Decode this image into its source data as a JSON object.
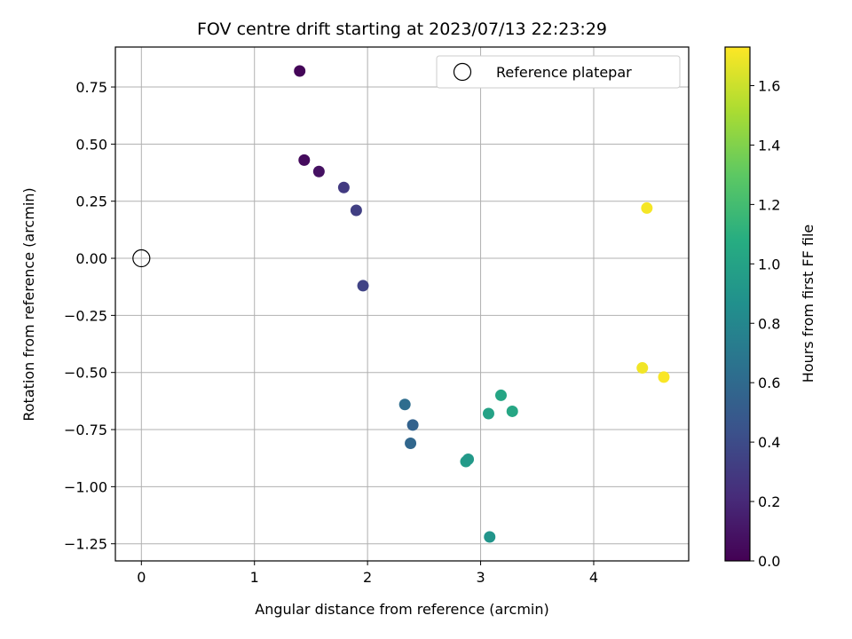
{
  "chart_data": {
    "type": "scatter",
    "title": "FOV centre drift starting at 2023/07/13 22:23:29",
    "xlabel": "Angular distance from reference (arcmin)",
    "ylabel": "Rotation from reference (arcmin)",
    "xlim": [
      -0.23,
      4.84
    ],
    "ylim": [
      -1.325,
      0.925
    ],
    "xticks": [
      0,
      1,
      2,
      3,
      4
    ],
    "xtick_labels": [
      "0",
      "1",
      "2",
      "3",
      "4"
    ],
    "yticks": [
      0.75,
      0.5,
      0.25,
      0.0,
      -0.25,
      -0.5,
      -0.75,
      -1.0,
      -1.25
    ],
    "ytick_labels": [
      "0.75",
      "0.50",
      "0.25",
      "0.00",
      "−0.25",
      "−0.50",
      "−0.75",
      "−1.00",
      "−1.25"
    ],
    "grid": true,
    "legend": {
      "position": "top-right",
      "entries": [
        "Reference platepar"
      ]
    },
    "reference_point": {
      "x": 0.0,
      "y": 0.0
    },
    "points": [
      {
        "x": 1.4,
        "y": 0.82,
        "hours": 0.02
      },
      {
        "x": 1.44,
        "y": 0.43,
        "hours": 0.05
      },
      {
        "x": 1.57,
        "y": 0.38,
        "hours": 0.08
      },
      {
        "x": 1.79,
        "y": 0.31,
        "hours": 0.3
      },
      {
        "x": 1.9,
        "y": 0.21,
        "hours": 0.33
      },
      {
        "x": 1.96,
        "y": -0.12,
        "hours": 0.35
      },
      {
        "x": 2.33,
        "y": -0.64,
        "hours": 0.62
      },
      {
        "x": 2.4,
        "y": -0.73,
        "hours": 0.55
      },
      {
        "x": 2.38,
        "y": -0.81,
        "hours": 0.58
      },
      {
        "x": 2.87,
        "y": -0.89,
        "hours": 0.95
      },
      {
        "x": 2.89,
        "y": -0.88,
        "hours": 0.93
      },
      {
        "x": 3.07,
        "y": -0.68,
        "hours": 1.0
      },
      {
        "x": 3.18,
        "y": -0.6,
        "hours": 1.02
      },
      {
        "x": 3.28,
        "y": -0.67,
        "hours": 1.03
      },
      {
        "x": 3.08,
        "y": -1.22,
        "hours": 0.9
      },
      {
        "x": 4.47,
        "y": 0.22,
        "hours": 1.71
      },
      {
        "x": 4.43,
        "y": -0.48,
        "hours": 1.7
      },
      {
        "x": 4.62,
        "y": -0.52,
        "hours": 1.72
      }
    ],
    "colorbar": {
      "label": "Hours from first FF file",
      "range": [
        0.0,
        1.73
      ],
      "ticks": [
        0.0,
        0.2,
        0.4,
        0.6,
        0.8,
        1.0,
        1.2,
        1.4,
        1.6
      ],
      "tick_labels": [
        "0.0",
        "0.2",
        "0.4",
        "0.6",
        "0.8",
        "1.0",
        "1.2",
        "1.4",
        "1.6"
      ],
      "colormap": "viridis"
    }
  }
}
